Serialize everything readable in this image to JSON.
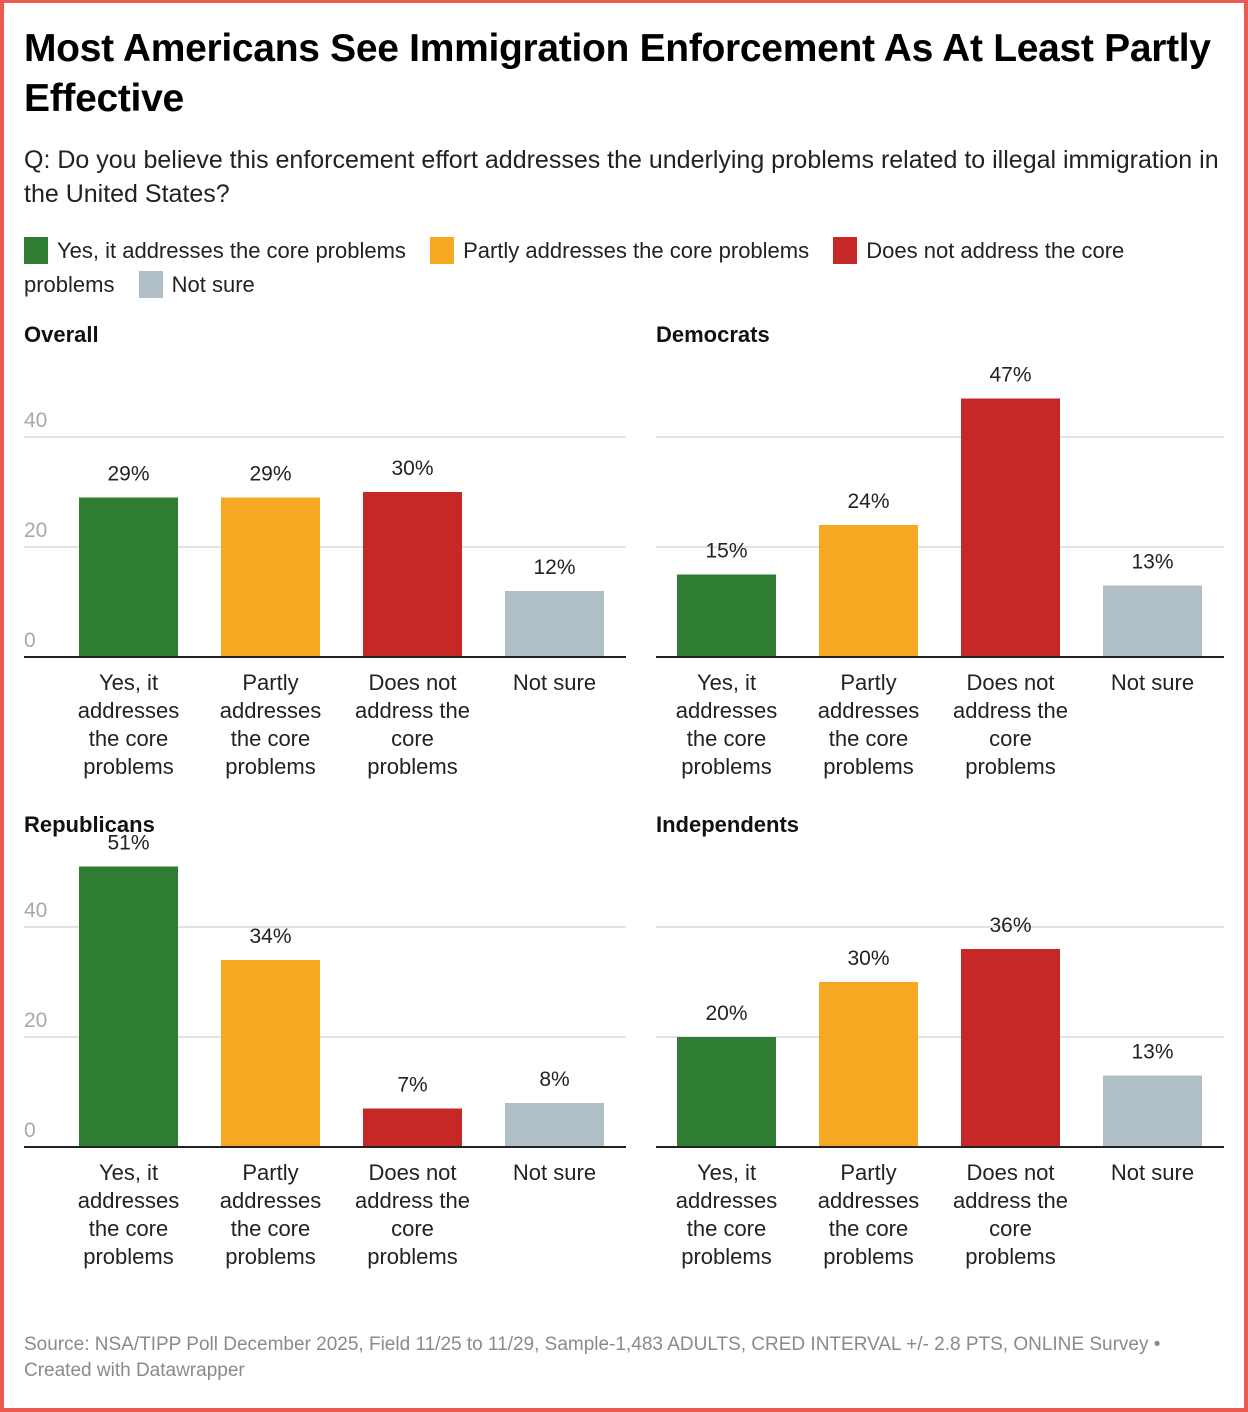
{
  "title": "Most Americans See Immigration Enforcement As At Least Partly Effective",
  "subtitle": "Q: Do you believe this enforcement effort addresses the underlying problems related to illegal immigration in the United States?",
  "legend": [
    {
      "label": "Yes, it addresses the core problems",
      "color": "#2e7d32"
    },
    {
      "label": "Partly addresses the core problems",
      "color": "#f7a823"
    },
    {
      "label": "Does not address the core problems",
      "color": "#c62828"
    },
    {
      "label": "Not sure",
      "color": "#b0bec5"
    }
  ],
  "footer": "Source: NSA/TIPP Poll December 2025, Field 11/25 to 11/29, Sample-1,483 ADULTS, CRED INTERVAL +/- 2.8 PTS, ONLINE Survey • Created with Datawrapper",
  "chart_data": [
    {
      "type": "bar",
      "title": "Overall",
      "categories": [
        "Yes, it addresses the core problems",
        "Partly addresses the core problems",
        "Does not address the core problems",
        "Not sure"
      ],
      "category_lines": [
        [
          "Yes, it",
          "addresses",
          "the core",
          "problems"
        ],
        [
          "Partly",
          "addresses",
          "the core",
          "problems"
        ],
        [
          "Does not",
          "address the",
          "core",
          "problems"
        ],
        [
          "Not sure"
        ]
      ],
      "values": [
        29,
        29,
        30,
        12
      ],
      "value_labels": [
        "29%",
        "29%",
        "30%",
        "12%"
      ],
      "colors": [
        "#2e7d32",
        "#f7a823",
        "#c62828",
        "#b0bec5"
      ],
      "yticks": [
        0,
        20,
        40
      ],
      "show_ytick_labels": true,
      "ylim": [
        0,
        50
      ],
      "grid": true,
      "xlabel": "",
      "ylabel": ""
    },
    {
      "type": "bar",
      "title": "Democrats",
      "categories": [
        "Yes, it addresses the core problems",
        "Partly addresses the core problems",
        "Does not address the core problems",
        "Not sure"
      ],
      "category_lines": [
        [
          "Yes, it",
          "addresses",
          "the core",
          "problems"
        ],
        [
          "Partly",
          "addresses",
          "the core",
          "problems"
        ],
        [
          "Does not",
          "address the",
          "core",
          "problems"
        ],
        [
          "Not sure"
        ]
      ],
      "values": [
        15,
        24,
        47,
        13
      ],
      "value_labels": [
        "15%",
        "24%",
        "47%",
        "13%"
      ],
      "colors": [
        "#2e7d32",
        "#f7a823",
        "#c62828",
        "#b0bec5"
      ],
      "yticks": [
        0,
        20,
        40
      ],
      "show_ytick_labels": false,
      "ylim": [
        0,
        50
      ],
      "grid": true,
      "xlabel": "",
      "ylabel": ""
    },
    {
      "type": "bar",
      "title": "Republicans",
      "categories": [
        "Yes, it addresses the core problems",
        "Partly addresses the core problems",
        "Does not address the core problems",
        "Not sure"
      ],
      "category_lines": [
        [
          "Yes, it",
          "addresses",
          "the core",
          "problems"
        ],
        [
          "Partly",
          "addresses",
          "the core",
          "problems"
        ],
        [
          "Does not",
          "address the",
          "core",
          "problems"
        ],
        [
          "Not sure"
        ]
      ],
      "values": [
        51,
        34,
        7,
        8
      ],
      "value_labels": [
        "51%",
        "34%",
        "7%",
        "8%"
      ],
      "colors": [
        "#2e7d32",
        "#f7a823",
        "#c62828",
        "#b0bec5"
      ],
      "yticks": [
        0,
        20,
        40
      ],
      "show_ytick_labels": true,
      "ylim": [
        0,
        55
      ],
      "grid": true,
      "xlabel": "",
      "ylabel": ""
    },
    {
      "type": "bar",
      "title": "Independents",
      "categories": [
        "Yes, it addresses the core problems",
        "Partly addresses the core problems",
        "Does not address the core problems",
        "Not sure"
      ],
      "category_lines": [
        [
          "Yes, it",
          "addresses",
          "the core",
          "problems"
        ],
        [
          "Partly",
          "addresses",
          "the core",
          "problems"
        ],
        [
          "Does not",
          "address the",
          "core",
          "problems"
        ],
        [
          "Not sure"
        ]
      ],
      "values": [
        20,
        30,
        36,
        13
      ],
      "value_labels": [
        "20%",
        "30%",
        "36%",
        "13%"
      ],
      "colors": [
        "#2e7d32",
        "#f7a823",
        "#c62828",
        "#b0bec5"
      ],
      "yticks": [
        0,
        20,
        40
      ],
      "show_ytick_labels": false,
      "ylim": [
        0,
        50
      ],
      "grid": true,
      "xlabel": "",
      "ylabel": ""
    }
  ]
}
